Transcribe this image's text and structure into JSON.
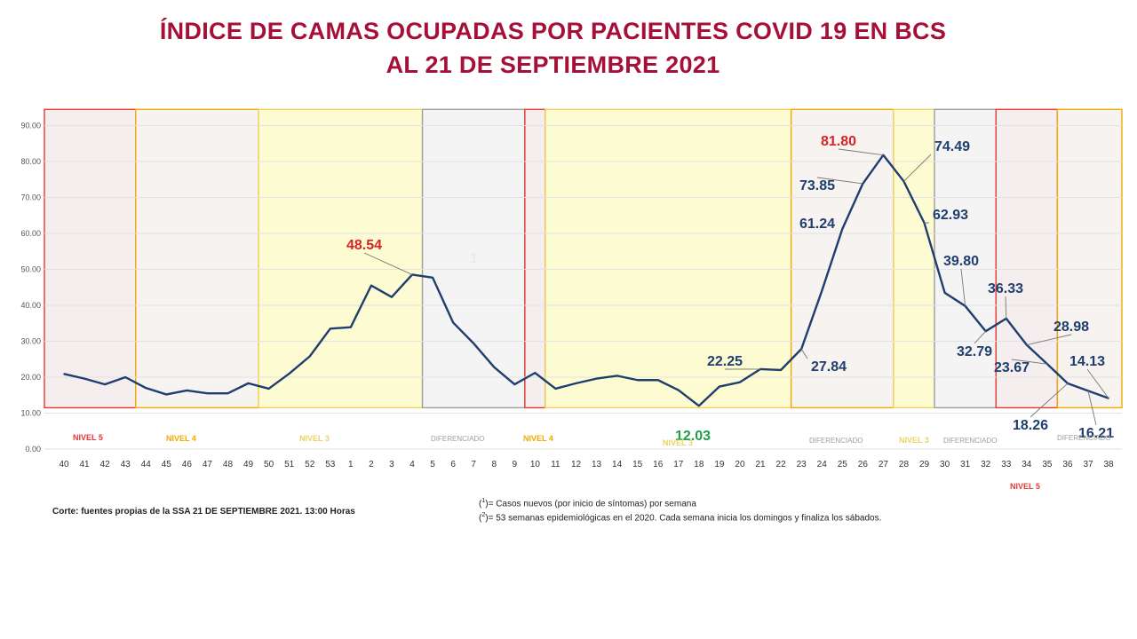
{
  "title": {
    "line1": "ÍNDICE DE CAMAS OCUPADAS POR PACIENTES COVID 19 EN BCS",
    "line2": "AL 21 DE SEPTIEMBRE 2021"
  },
  "footnotes": {
    "corte": "Corte: fuentes propias de la SSA  21 DE SEPTIEMBRE 2021. 13:00 Horas",
    "note1_mark": "1",
    "note1_text": "= Casos nuevos (por inicio de síntomas) por semana",
    "note2_mark": "2",
    "note2_text": "= 53 semanas epidemiológicas en el 2020. Cada semana inicia los domingos y finaliza los sábados."
  },
  "stray_mark": "1",
  "colors": {
    "title": "#a50f38",
    "line": "#1f3e6e",
    "nivel5": "#e53935",
    "nivel4": "#f2a900",
    "nivel3": "#f0d264",
    "diferenciado": "#9e9e9e",
    "highlight_red": "#d6242b",
    "highlight_green": "#1f9e47"
  },
  "chart_data": {
    "type": "line",
    "x": [
      "40",
      "41",
      "42",
      "43",
      "44",
      "45",
      "46",
      "47",
      "48",
      "49",
      "50",
      "51",
      "52",
      "53",
      "1",
      "2",
      "3",
      "4",
      "5",
      "6",
      "7",
      "8",
      "9",
      "10",
      "11",
      "12",
      "13",
      "14",
      "15",
      "16",
      "17",
      "18",
      "19",
      "20",
      "21",
      "22",
      "23",
      "24",
      "25",
      "26",
      "27",
      "28",
      "29",
      "30",
      "31",
      "32",
      "33",
      "34",
      "35",
      "36",
      "37",
      "38"
    ],
    "values": [
      20.9,
      19.6,
      18.0,
      20.0,
      17.0,
      15.2,
      16.3,
      15.5,
      15.5,
      18.3,
      16.8,
      21.0,
      25.8,
      33.5,
      33.9,
      45.5,
      42.3,
      48.54,
      47.7,
      35.2,
      29.4,
      22.8,
      18.0,
      21.2,
      16.8,
      18.3,
      19.6,
      20.4,
      19.2,
      19.2,
      16.4,
      12.03,
      17.4,
      18.6,
      22.25,
      22.0,
      27.84,
      44.0,
      61.24,
      73.85,
      81.8,
      74.49,
      62.93,
      43.5,
      39.8,
      32.79,
      36.33,
      28.98,
      23.67,
      18.26,
      16.21,
      14.13
    ],
    "ylim": [
      0,
      95
    ],
    "yticks": [
      "0.00",
      "10.00",
      "20.00",
      "30.00",
      "40.00",
      "50.00",
      "60.00",
      "70.00",
      "80.00",
      "90.00"
    ],
    "grid": true,
    "annotations": [
      {
        "label": "48.54",
        "x": "4",
        "color": "red"
      },
      {
        "label": "12.03",
        "x": "18",
        "color": "green"
      },
      {
        "label": "22.25",
        "x": "21",
        "color": "blue"
      },
      {
        "label": "27.84",
        "x": "23",
        "color": "blue"
      },
      {
        "label": "61.24",
        "x": "25",
        "color": "blue"
      },
      {
        "label": "73.85",
        "x": "26",
        "color": "blue"
      },
      {
        "label": "81.80",
        "x": "27",
        "color": "red"
      },
      {
        "label": "74.49",
        "x": "28",
        "color": "blue"
      },
      {
        "label": "62.93",
        "x": "29",
        "color": "blue"
      },
      {
        "label": "39.80",
        "x": "31",
        "color": "blue"
      },
      {
        "label": "32.79",
        "x": "32",
        "color": "blue"
      },
      {
        "label": "36.33",
        "x": "33",
        "color": "blue"
      },
      {
        "label": "28.98",
        "x": "34",
        "color": "blue"
      },
      {
        "label": "23.67",
        "x": "35",
        "color": "blue"
      },
      {
        "label": "18.26",
        "x": "36",
        "color": "blue"
      },
      {
        "label": "16.21",
        "x": "37",
        "color": "blue"
      },
      {
        "label": "14.13",
        "x": "38",
        "color": "blue"
      }
    ],
    "periods": [
      {
        "label": "NIVEL 5",
        "from": "40",
        "to": "44",
        "level": "nivel5"
      },
      {
        "label": "NIVEL 4",
        "from": "44",
        "to": "50",
        "level": "nivel4"
      },
      {
        "label": "NIVEL 3",
        "from": "50",
        "to": "5",
        "level": "nivel3"
      },
      {
        "label": "DIFERENCIADO",
        "from": "5",
        "to": "10",
        "level": "diferenciado"
      },
      {
        "label": "",
        "from": "10",
        "to": "11",
        "level": "nivel5"
      },
      {
        "label": "NIVEL 4",
        "from": "11",
        "to": "23",
        "level": "nivel3"
      },
      {
        "label": "NIVEL 3",
        "from": "17",
        "to": "18",
        "level": "none"
      },
      {
        "label": "DIFERENCIADO",
        "from": "23",
        "to": "28",
        "level": "nivel4"
      },
      {
        "label": "NIVEL 3",
        "from": "28",
        "to": "30",
        "level": "nivel3"
      },
      {
        "label": "DIFERENCIADO",
        "from": "30",
        "to": "33",
        "level": "diferenciado"
      },
      {
        "label": "NIVEL 5",
        "from": "33",
        "to": "36",
        "level": "nivel5"
      },
      {
        "label": "DIFERENCIADO",
        "from": "36",
        "to": "38",
        "level": "nivel4"
      }
    ]
  }
}
